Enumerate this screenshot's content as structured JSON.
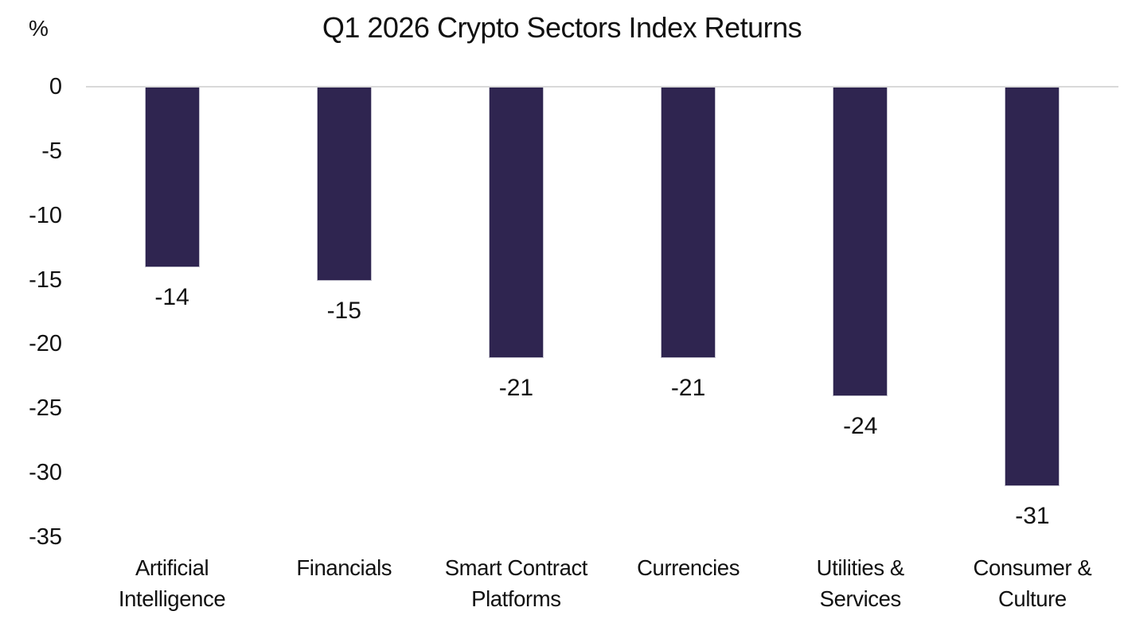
{
  "chart_data": {
    "type": "bar",
    "title": "Q1 2026 Crypto Sectors Index Returns",
    "ylabel": "%",
    "categories": [
      "Artificial Intelligence",
      "Financials",
      "Smart Contract Platforms",
      "Currencies",
      "Utilities & Services",
      "Consumer & Culture"
    ],
    "values": [
      -14,
      -15,
      -21,
      -21,
      -24,
      -31
    ],
    "data_labels": [
      "-14",
      "-15",
      "-21",
      "-21",
      "-24",
      "-31"
    ],
    "yticks": [
      0,
      -5,
      -10,
      -15,
      -20,
      -25,
      -30,
      -35
    ],
    "ylim": [
      -35,
      0
    ],
    "grid": false,
    "legend": false,
    "colors": {
      "bar": "#2f2550",
      "axis_line": "#d9d9d9",
      "text": "#111111"
    }
  }
}
